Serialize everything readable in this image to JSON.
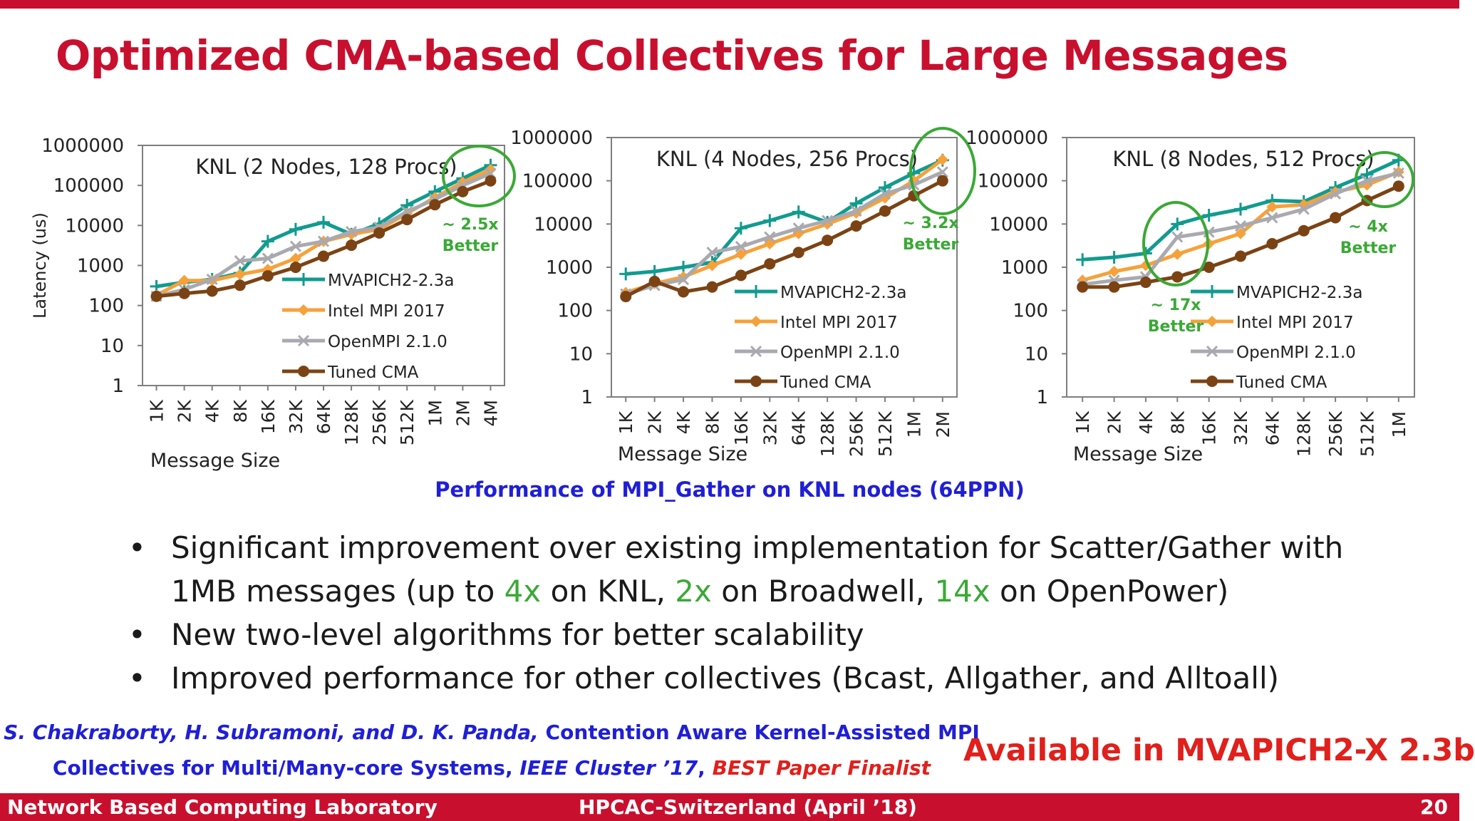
{
  "slide": {
    "title": "Optimized CMA-based Collectives for Large Messages",
    "caption": "Performance of MPI_Gather on KNL nodes (64PPN)",
    "bullets": [
      {
        "parts": [
          {
            "text": "Significant improvement over existing implementation for Scatter/Gather with 1MB messages (up to "
          },
          {
            "text": "4x",
            "highlight": true
          },
          {
            "text": " on KNL, "
          },
          {
            "text": "2x",
            "highlight": true
          },
          {
            "text": " on Broadwell, "
          },
          {
            "text": "14x",
            "highlight": true
          },
          {
            "text": " on OpenPower)"
          }
        ]
      },
      {
        "parts": [
          {
            "text": "New two-level algorithms for better scalability"
          }
        ]
      },
      {
        "parts": [
          {
            "text": "Improved performance for other collectives (Bcast, Allgather, and Alltoall)"
          }
        ]
      }
    ],
    "citation": {
      "authors": "S. Chakraborty, H. Subramoni, and D. K. Panda,",
      "title_line1": " Contention Aware Kernel-Assisted MPI",
      "title_line2": "Collectives for Multi/Many-core Systems, ",
      "venue": "IEEE Cluster ’17",
      "separator": ", ",
      "award": "BEST Paper Finalist"
    },
    "availability": "Available in MVAPICH2-X 2.3b",
    "footer": {
      "left": "Network Based Computing Laboratory",
      "center": "HPCAC-Switzerland (April ’18)",
      "page": "20"
    }
  },
  "colors": {
    "MVAPICH2-2.3a": "#119b8f",
    "Intel MPI 2017": "#f7a13a",
    "OpenMPI 2.1.0": "#a9a9b0",
    "Tuned CMA": "#7b4314",
    "highlight": "#3aa935",
    "brand": "#c8102e"
  },
  "chart_data": [
    {
      "type": "line",
      "title": "KNL (2 Nodes, 128 Procs)",
      "xlabel": "Message Size",
      "ylabel": "Latency (us)",
      "yscale": "log",
      "ylim": [
        1,
        1000000
      ],
      "yticks": [
        "1",
        "10",
        "100",
        "1000",
        "10000",
        "100000",
        "1000000"
      ],
      "categories": [
        "1K",
        "2K",
        "4K",
        "8K",
        "16K",
        "32K",
        "64K",
        "128K",
        "256K",
        "512K",
        "1M",
        "2M",
        "4M"
      ],
      "series": [
        {
          "name": "MVAPICH2-2.3a",
          "values": [
            300,
            380,
            450,
            650,
            4000,
            8000,
            12000,
            6000,
            11000,
            32000,
            70000,
            150000,
            320000
          ]
        },
        {
          "name": "Intel MPI 2017",
          "values": [
            180,
            420,
            420,
            600,
            800,
            1500,
            4000,
            6000,
            8000,
            20000,
            50000,
            120000,
            250000
          ]
        },
        {
          "name": "OpenMPI 2.1.0",
          "values": [
            170,
            250,
            450,
            1300,
            1500,
            3000,
            4000,
            7000,
            9000,
            22000,
            45000,
            100000,
            200000
          ]
        },
        {
          "name": "Tuned CMA",
          "values": [
            170,
            200,
            230,
            320,
            550,
            900,
            1700,
            3200,
            6500,
            14000,
            33000,
            70000,
            130000
          ]
        }
      ],
      "annotation": {
        "lines": [
          "~ 2.5x",
          "Better"
        ]
      },
      "legend_position": "right-middle",
      "grid": false
    },
    {
      "type": "line",
      "title": "KNL (4 Nodes, 256 Procs)",
      "xlabel": "Message Size",
      "yscale": "log",
      "ylim": [
        1,
        1000000
      ],
      "yticks": [
        "1",
        "10",
        "100",
        "1000",
        "10000",
        "100000",
        "1000000"
      ],
      "categories": [
        "1K",
        "2K",
        "4K",
        "8K",
        "16K",
        "32K",
        "64K",
        "128K",
        "256K",
        "512K",
        "1M",
        "2M"
      ],
      "series": [
        {
          "name": "MVAPICH2-2.3a",
          "values": [
            700,
            800,
            1000,
            1300,
            8000,
            12000,
            19000,
            11000,
            30000,
            70000,
            150000,
            300000
          ]
        },
        {
          "name": "Intel MPI 2017",
          "values": [
            260,
            420,
            600,
            1100,
            2000,
            3500,
            6000,
            10000,
            18000,
            40000,
            100000,
            310000
          ]
        },
        {
          "name": "OpenMPI 2.1.0",
          "values": [
            240,
            380,
            520,
            2200,
            3000,
            5000,
            8000,
            12000,
            20000,
            50000,
            80000,
            160000
          ]
        },
        {
          "name": "Tuned CMA",
          "values": [
            210,
            470,
            270,
            350,
            650,
            1200,
            2200,
            4200,
            9000,
            20000,
            45000,
            100000
          ]
        }
      ],
      "annotation": {
        "lines": [
          "~ 3.2x",
          "Better"
        ]
      },
      "legend_position": "right-bottom",
      "grid": false
    },
    {
      "type": "line",
      "title": "KNL (8 Nodes, 512 Procs)",
      "xlabel": "Message Size",
      "yscale": "log",
      "ylim": [
        1,
        1000000
      ],
      "yticks": [
        "1",
        "10",
        "100",
        "1000",
        "10000",
        "100000",
        "1000000"
      ],
      "categories": [
        "1K",
        "2K",
        "4K",
        "8K",
        "16K",
        "32K",
        "64K",
        "128K",
        "256K",
        "512K",
        "1M"
      ],
      "series": [
        {
          "name": "MVAPICH2-2.3a",
          "values": [
            1500,
            1700,
            2100,
            10000,
            16000,
            22000,
            35000,
            33000,
            70000,
            140000,
            300000
          ]
        },
        {
          "name": "Intel MPI 2017",
          "values": [
            500,
            800,
            1100,
            2000,
            3500,
            6000,
            25000,
            28000,
            55000,
            80000,
            160000
          ]
        },
        {
          "name": "OpenMPI 2.1.0",
          "values": [
            400,
            500,
            600,
            5000,
            6500,
            9000,
            14000,
            22000,
            50000,
            100000,
            150000
          ]
        },
        {
          "name": "Tuned CMA",
          "values": [
            350,
            350,
            450,
            600,
            1000,
            1800,
            3500,
            7000,
            14000,
            35000,
            75000
          ]
        }
      ],
      "annotations": [
        {
          "lines": [
            "~ 17x",
            "Better"
          ]
        },
        {
          "lines": [
            "~ 4x",
            "Better"
          ]
        }
      ],
      "legend_position": "right-bottom",
      "grid": false
    }
  ]
}
